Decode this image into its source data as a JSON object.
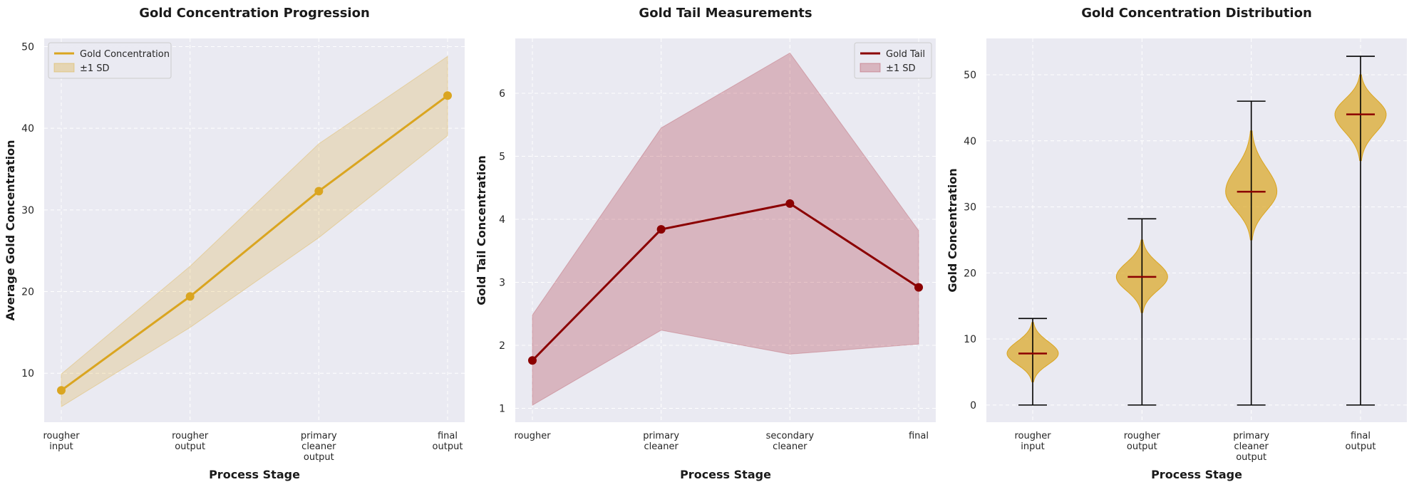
{
  "chart_data": [
    {
      "type": "line",
      "title": "Gold Concentration Progression",
      "xlabel": "Process Stage",
      "ylabel": "Average Gold Concentration",
      "categories": [
        [
          "rougher",
          "input"
        ],
        [
          "rougher",
          "output"
        ],
        [
          "primary",
          "cleaner",
          "output"
        ],
        [
          "final",
          "output"
        ]
      ],
      "ylim": [
        4,
        51
      ],
      "yticks": [
        10,
        20,
        30,
        40,
        50
      ],
      "grid": true,
      "legend_position": "upper-left",
      "series": [
        {
          "name": "Gold Concentration",
          "values": [
            7.9,
            19.4,
            32.3,
            44.0
          ],
          "color": "#DAA520"
        }
      ],
      "band": {
        "name": "±1 SD",
        "lower": [
          5.9,
          15.6,
          26.6,
          39.1
        ],
        "upper": [
          9.9,
          23.1,
          38.1,
          48.8
        ],
        "color": "#DAA520"
      }
    },
    {
      "type": "line",
      "title": "Gold Tail Measurements",
      "xlabel": "Process Stage",
      "ylabel": "Gold Tail Concentration",
      "categories": [
        [
          "rougher"
        ],
        [
          "primary",
          "cleaner"
        ],
        [
          "secondary",
          "cleaner"
        ],
        [
          "final"
        ]
      ],
      "ylim": [
        0.78,
        6.87
      ],
      "yticks": [
        1,
        2,
        3,
        4,
        5,
        6
      ],
      "grid": true,
      "legend_position": "upper-right",
      "series": [
        {
          "name": "Gold Tail",
          "values": [
            1.76,
            3.84,
            4.25,
            2.92
          ],
          "color": "#8B0000"
        }
      ],
      "band": {
        "name": "±1 SD",
        "lower": [
          1.05,
          2.24,
          1.86,
          2.02
        ],
        "upper": [
          2.48,
          5.45,
          6.64,
          3.82
        ],
        "color": "#B03A48"
      }
    },
    {
      "type": "violin",
      "title": "Gold Concentration Distribution",
      "xlabel": "Process Stage",
      "ylabel": "Gold Concentration",
      "categories": [
        [
          "rougher",
          "input"
        ],
        [
          "rougher",
          "output"
        ],
        [
          "primary",
          "cleaner",
          "output"
        ],
        [
          "final",
          "output"
        ]
      ],
      "ylim": [
        -2.6,
        55.5
      ],
      "yticks": [
        0,
        10,
        20,
        30,
        40,
        50
      ],
      "grid": true,
      "color": "#DAA520",
      "median_color": "#8B0000",
      "violins": [
        {
          "min": 0,
          "max": 13.1,
          "median": 7.8,
          "kde_low": 3.5,
          "kde_high": 12.5
        },
        {
          "min": 0,
          "max": 28.2,
          "median": 19.4,
          "kde_low": 14.0,
          "kde_high": 25.0
        },
        {
          "min": 0,
          "max": 46.0,
          "median": 32.3,
          "kde_low": 25.0,
          "kde_high": 41.5
        },
        {
          "min": 0,
          "max": 52.8,
          "median": 44.0,
          "kde_low": 37.0,
          "kde_high": 50.0
        }
      ]
    }
  ]
}
